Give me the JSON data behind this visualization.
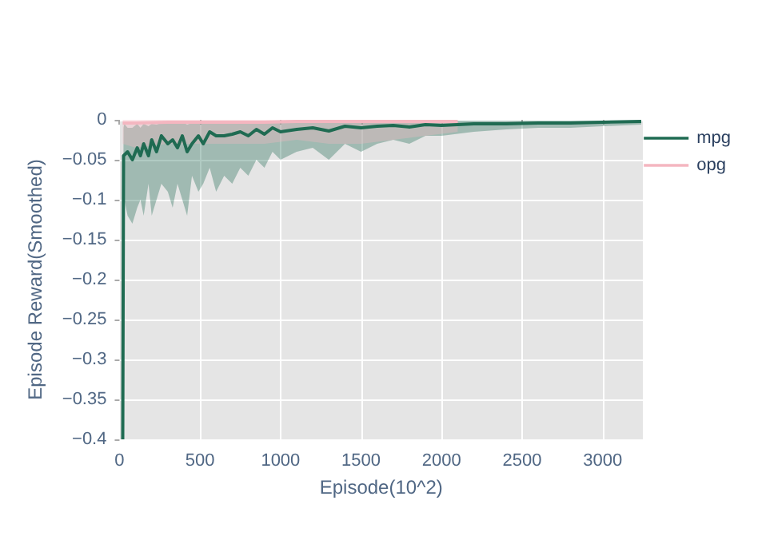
{
  "chart_data": {
    "type": "line",
    "xlabel": "Episode(10^2)",
    "ylabel": "Episode Reward(Smoothed)",
    "xlim": [
      0,
      3250
    ],
    "xticks": [
      0,
      500,
      1000,
      1500,
      2000,
      2500,
      3000
    ],
    "ylim": [
      -0.4,
      0
    ],
    "yticks": [
      {
        "value": -0.4,
        "label": "−0.4"
      },
      {
        "value": -0.35,
        "label": "−0.35"
      },
      {
        "value": -0.3,
        "label": "−0.3"
      },
      {
        "value": -0.25,
        "label": "−0.25"
      },
      {
        "value": -0.2,
        "label": "−0.2"
      },
      {
        "value": -0.15,
        "label": "−0.15"
      },
      {
        "value": -0.1,
        "label": "−0.1"
      },
      {
        "value": -0.05,
        "label": "−0.05"
      },
      {
        "value": 0,
        "label": "0"
      }
    ],
    "grid": true,
    "legend": "top right",
    "marker": "none",
    "line_style": "solid",
    "series": [
      {
        "name": "mpg",
        "color": "#1f6b52",
        "x": [
          20,
          25,
          30,
          50,
          80,
          110,
          130,
          150,
          180,
          200,
          230,
          260,
          300,
          330,
          360,
          390,
          420,
          450,
          490,
          520,
          560,
          600,
          650,
          700,
          750,
          800,
          850,
          900,
          950,
          1000,
          1100,
          1200,
          1300,
          1400,
          1500,
          1600,
          1700,
          1800,
          1900,
          2000,
          2200,
          2400,
          2600,
          2800,
          3000,
          3240
        ],
        "values": [
          -0.4,
          -0.045,
          -0.045,
          -0.04,
          -0.05,
          -0.035,
          -0.045,
          -0.03,
          -0.045,
          -0.025,
          -0.04,
          -0.02,
          -0.03,
          -0.025,
          -0.035,
          -0.02,
          -0.04,
          -0.03,
          -0.02,
          -0.03,
          -0.015,
          -0.02,
          -0.02,
          -0.018,
          -0.015,
          -0.02,
          -0.012,
          -0.018,
          -0.01,
          -0.015,
          -0.012,
          -0.01,
          -0.014,
          -0.008,
          -0.01,
          -0.008,
          -0.007,
          -0.009,
          -0.006,
          -0.007,
          -0.005,
          -0.005,
          -0.004,
          -0.004,
          -0.003,
          -0.002
        ],
        "lower": [
          -0.4,
          -0.1,
          -0.1,
          -0.12,
          -0.13,
          -0.11,
          -0.1,
          -0.12,
          -0.08,
          -0.12,
          -0.1,
          -0.08,
          -0.09,
          -0.11,
          -0.08,
          -0.1,
          -0.12,
          -0.07,
          -0.09,
          -0.08,
          -0.06,
          -0.09,
          -0.07,
          -0.08,
          -0.06,
          -0.07,
          -0.05,
          -0.06,
          -0.04,
          -0.05,
          -0.04,
          -0.035,
          -0.05,
          -0.03,
          -0.04,
          -0.03,
          -0.025,
          -0.03,
          -0.02,
          -0.02,
          -0.015,
          -0.012,
          -0.01,
          -0.01,
          -0.008,
          -0.006
        ],
        "upper": [
          -0.4,
          -0.01,
          -0.005,
          -0.01,
          -0.01,
          -0.005,
          -0.01,
          -0.005,
          -0.008,
          -0.005,
          -0.006,
          -0.004,
          -0.005,
          -0.004,
          -0.005,
          -0.003,
          -0.006,
          -0.004,
          -0.003,
          -0.004,
          -0.002,
          -0.003,
          -0.003,
          -0.003,
          -0.002,
          -0.003,
          -0.002,
          -0.002,
          -0.002,
          -0.002,
          -0.002,
          -0.002,
          -0.002,
          -0.001,
          -0.001,
          -0.001,
          -0.001,
          -0.001,
          -0.001,
          -0.001,
          -0.001,
          -0.001,
          -0.001,
          -0.001,
          -0.001,
          -0.001
        ]
      },
      {
        "name": "opg",
        "color": "#f4b6c0",
        "x": [
          20,
          100,
          300,
          500,
          700,
          900,
          1100,
          1300,
          1500,
          1700,
          1900,
          2100
        ],
        "values": [
          -0.004,
          -0.004,
          -0.003,
          -0.003,
          -0.003,
          -0.003,
          -0.002,
          -0.002,
          -0.002,
          -0.002,
          -0.002,
          -0.002
        ],
        "lower": [
          -0.03,
          -0.035,
          -0.03,
          -0.03,
          -0.03,
          -0.03,
          -0.025,
          -0.03,
          -0.03,
          -0.025,
          -0.02,
          -0.015
        ],
        "upper": [
          0,
          0,
          0,
          0,
          0,
          0,
          0,
          0,
          0,
          0,
          0,
          0
        ]
      }
    ]
  }
}
